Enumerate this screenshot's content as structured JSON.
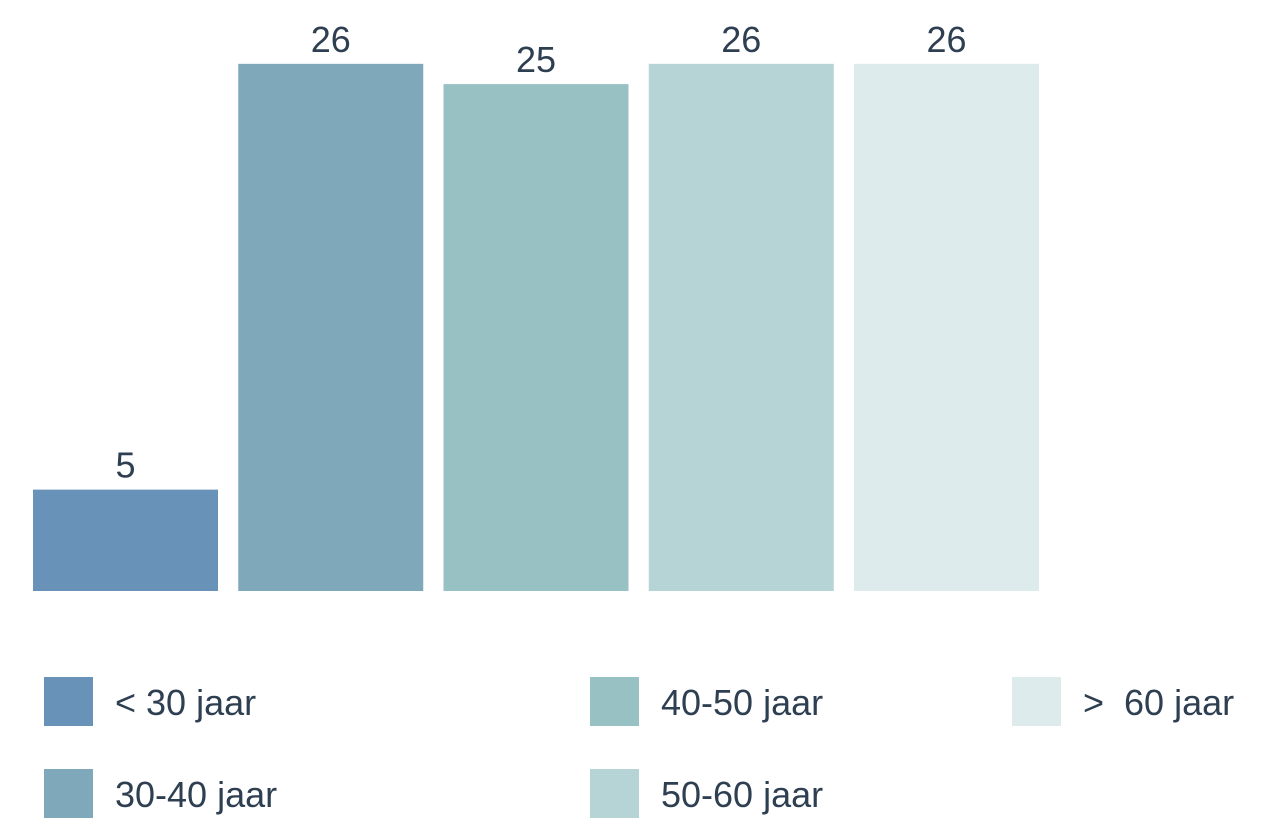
{
  "chart_data": {
    "type": "bar",
    "categories": [
      "< 30 jaar",
      "30-40 jaar",
      "40-50 jaar",
      "50-60 jaar",
      ">  60 jaar"
    ],
    "values": [
      5,
      26,
      25,
      26,
      26
    ],
    "colors": [
      "#6892b7",
      "#80a8bb",
      "#98c1c4",
      "#b6d3d5",
      "#ddebec"
    ],
    "ylim": [
      0,
      29
    ]
  }
}
